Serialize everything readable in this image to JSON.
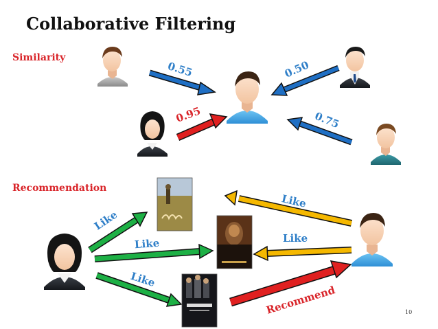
{
  "title": "Collaborative Filtering",
  "sections": {
    "similarity": "Similarity",
    "recommendation": "Recommendation"
  },
  "similarity_edges": [
    {
      "from": "man-gray-shirt",
      "to": "target-user",
      "value": "0.55",
      "color": "#1f6fc4"
    },
    {
      "from": "man-dark-suit",
      "to": "target-user",
      "value": "0.50",
      "color": "#1f6fc4"
    },
    {
      "from": "woman",
      "to": "target-user",
      "value": "0.95",
      "color": "#e02020"
    },
    {
      "from": "man-teal-shirt",
      "to": "target-user",
      "value": "0.75",
      "color": "#1f6fc4"
    }
  ],
  "recommendation_edges": [
    {
      "from": "woman",
      "to": "movie-1",
      "label": "Like"
    },
    {
      "from": "woman",
      "to": "movie-2",
      "label": "Like"
    },
    {
      "from": "woman",
      "to": "movie-3",
      "label": "Like"
    },
    {
      "from": "target-user",
      "to": "movie-1",
      "label": "Like"
    },
    {
      "from": "target-user",
      "to": "movie-2",
      "label": "Like"
    },
    {
      "from": "movie-3",
      "to": "target-user",
      "label": "Recommend"
    }
  ],
  "page_number": "10",
  "colors": {
    "like_green": "#1db045",
    "like_yellow": "#f5b800",
    "recommend_red": "#e02020",
    "similar_blue": "#1f6fc4",
    "label_blue": "#2f7fc8",
    "label_red": "#d9252a"
  }
}
